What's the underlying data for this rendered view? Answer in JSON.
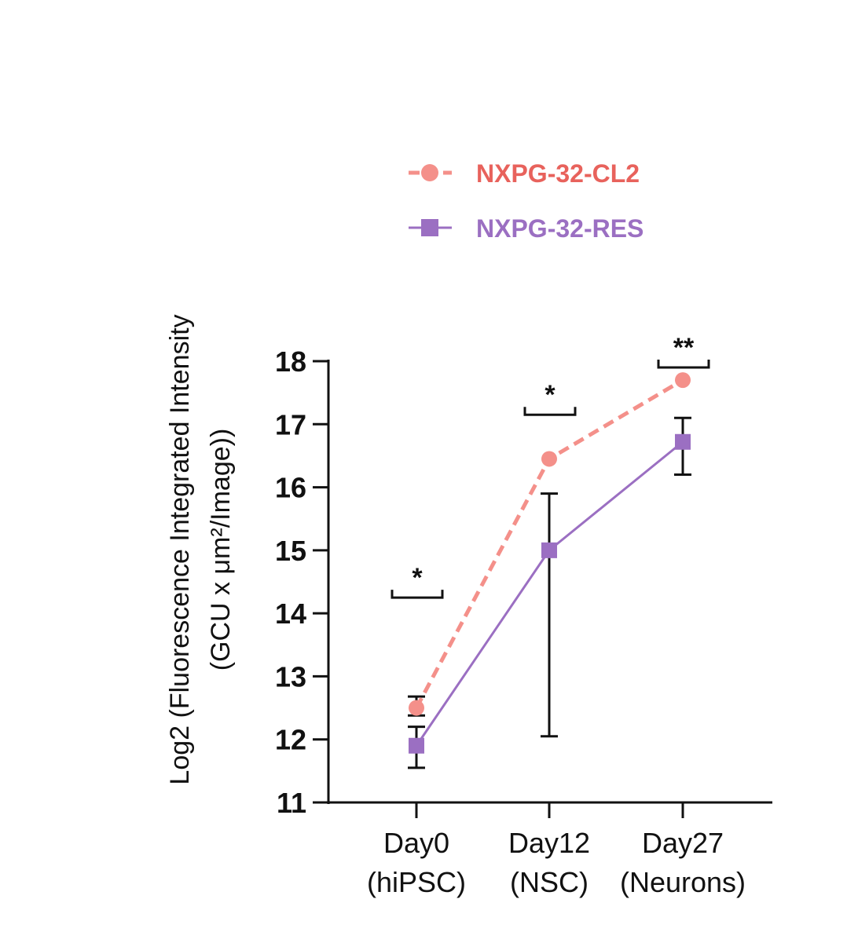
{
  "chart_data": {
    "type": "line",
    "ylabel_line1": "Log2 (Fluorescence Integrated Intensity",
    "ylabel_line2": "(GCU x μm²/Image))",
    "categories": [
      {
        "line1": "Day0",
        "line2": "(hiPSC)"
      },
      {
        "line1": "Day12",
        "line2": "(NSC)"
      },
      {
        "line1": "Day27",
        "line2": "(Neurons)"
      }
    ],
    "ylim": [
      11,
      18
    ],
    "yticks": [
      11,
      12,
      13,
      14,
      15,
      16,
      17,
      18
    ],
    "series": [
      {
        "name": "NXPG-32-CL2",
        "color": "#f4908a",
        "line_style": "dashed",
        "marker": "circle",
        "values": [
          12.5,
          16.45,
          17.7
        ],
        "err_low": [
          12.38,
          null,
          null
        ],
        "err_high": [
          12.68,
          null,
          null
        ]
      },
      {
        "name": "NXPG-32-RES",
        "color": "#9b6fc2",
        "line_style": "solid",
        "marker": "square",
        "values": [
          11.9,
          15.0,
          16.72
        ],
        "err_low": [
          11.55,
          12.05,
          16.2
        ],
        "err_high": [
          12.2,
          15.9,
          17.1
        ]
      }
    ],
    "significance": [
      {
        "category_index": 0,
        "label": "*",
        "y": 14.25
      },
      {
        "category_index": 1,
        "label": "*",
        "y": 17.15
      },
      {
        "category_index": 2,
        "label": "**",
        "y": 17.9
      }
    ],
    "legend_position": "top"
  }
}
